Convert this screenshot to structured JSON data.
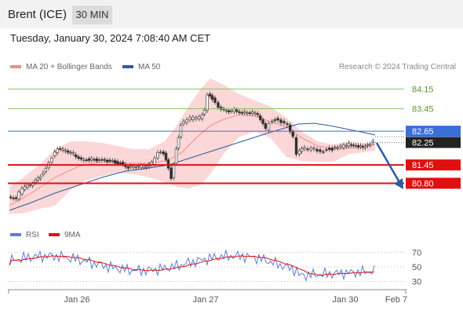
{
  "header": {
    "instrument": "Brent (ICE)",
    "interval": "30 MIN"
  },
  "timestamp": "Tuesday, January 30, 2024 7:08:40 AM CET",
  "legend": {
    "bollinger": {
      "label": "MA 20 + Bollinger Bands",
      "color": "#f28c8c"
    },
    "ma50": {
      "label": "MA 50",
      "color": "#2e5c9e"
    }
  },
  "credits": "Research © 2024 Trading Central",
  "price_levels": [
    {
      "label": "84.15",
      "value": 84.15,
      "color": "#8dc26b",
      "kind": "target"
    },
    {
      "label": "83.45",
      "value": 83.45,
      "color": "#8dc26b",
      "kind": "target"
    },
    {
      "label": "82.65",
      "value": 82.65,
      "color": "#3b6ed6",
      "kind": "pivot"
    },
    {
      "label": "82.25",
      "value": 82.25,
      "color": "#222222",
      "kind": "last"
    },
    {
      "label": "81.45",
      "value": 81.45,
      "color": "#e01010",
      "kind": "support"
    },
    {
      "label": "80.80",
      "value": 80.8,
      "color": "#e01010",
      "kind": "support"
    }
  ],
  "rsi": {
    "legend": {
      "rsi": {
        "label": "RSI",
        "color": "#5b7fd6"
      },
      "ma": {
        "label": "9MA",
        "color": "#e01010"
      }
    },
    "levels": [
      70,
      50,
      30
    ],
    "range": [
      20,
      80
    ]
  },
  "x_axis": [
    "Jan 26",
    "Jan 27",
    "Jan 30",
    "Feb 7"
  ],
  "colors": {
    "candle": "#2f2f2f",
    "bull_body": "#ffffff",
    "band": "#f9c9c9",
    "arrow": "#2e5c9e"
  }
}
